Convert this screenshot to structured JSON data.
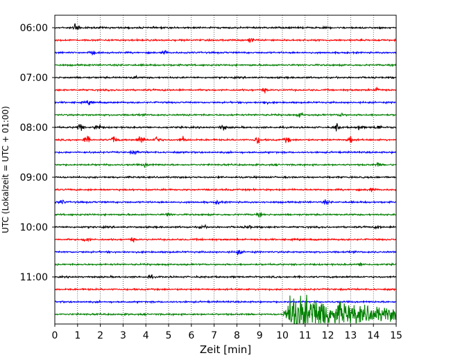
{
  "chart_data": {
    "type": "line",
    "xlabel": "Zeit  [min]",
    "ylabel": "UTC (Lokalzeit = UTC + 01:00)",
    "xlim": [
      0,
      15
    ],
    "x_ticks": [
      "0",
      "1",
      "2",
      "3",
      "4",
      "5",
      "6",
      "7",
      "8",
      "9",
      "10",
      "11",
      "12",
      "13",
      "14",
      "15"
    ],
    "y_ticks": [
      "06:00",
      "07:00",
      "08:00",
      "09:00",
      "10:00",
      "11:00"
    ],
    "grid": "vertical dotted",
    "trace_colors": [
      "#000000",
      "#ff0000",
      "#0000ff",
      "#008000"
    ],
    "traces": [
      {
        "start": "06:00",
        "color": "#000000",
        "events": [
          {
            "t": 0.95,
            "amp": 1.0
          }
        ]
      },
      {
        "start": "06:15",
        "color": "#ff0000",
        "events": [
          {
            "t": 8.6,
            "amp": 0.3
          }
        ]
      },
      {
        "start": "06:30",
        "color": "#0000ff",
        "events": [
          {
            "t": 1.65,
            "amp": 0.3
          },
          {
            "t": 4.8,
            "amp": 0.25
          }
        ]
      },
      {
        "start": "06:45",
        "color": "#008000",
        "events": []
      },
      {
        "start": "07:00",
        "color": "#000000",
        "events": [
          {
            "t": 3.5,
            "amp": 0.2
          }
        ]
      },
      {
        "start": "07:15",
        "color": "#ff0000",
        "events": [
          {
            "t": 9.2,
            "amp": 0.3
          },
          {
            "t": 14.2,
            "amp": 0.35
          }
        ]
      },
      {
        "start": "07:30",
        "color": "#0000ff",
        "events": [
          {
            "t": 1.5,
            "amp": 0.3
          },
          {
            "t": 9.2,
            "amp": 0.3
          }
        ]
      },
      {
        "start": "07:45",
        "color": "#008000",
        "events": [
          {
            "t": 10.8,
            "amp": 0.3
          },
          {
            "t": 12.6,
            "amp": 0.3
          }
        ]
      },
      {
        "start": "08:00",
        "color": "#000000",
        "events": [
          {
            "t": 1.1,
            "amp": 0.6
          },
          {
            "t": 1.9,
            "amp": 0.6
          },
          {
            "t": 7.4,
            "amp": 0.5
          },
          {
            "t": 12.4,
            "amp": 0.6
          },
          {
            "t": 13.4,
            "amp": 0.4
          },
          {
            "t": 14.2,
            "amp": 0.4
          }
        ]
      },
      {
        "start": "08:15",
        "color": "#ff0000",
        "events": [
          {
            "t": 1.4,
            "amp": 0.6
          },
          {
            "t": 2.6,
            "amp": 0.6
          },
          {
            "t": 3.8,
            "amp": 0.7
          },
          {
            "t": 4.5,
            "amp": 0.6
          },
          {
            "t": 5.6,
            "amp": 0.5
          },
          {
            "t": 8.9,
            "amp": 0.6
          },
          {
            "t": 10.2,
            "amp": 0.5
          },
          {
            "t": 13.0,
            "amp": 0.6
          }
        ]
      },
      {
        "start": "08:30",
        "color": "#0000ff",
        "events": [
          {
            "t": 3.5,
            "amp": 0.3
          }
        ]
      },
      {
        "start": "08:45",
        "color": "#008000",
        "events": [
          {
            "t": 4.0,
            "amp": 0.35
          },
          {
            "t": 14.2,
            "amp": 0.3
          }
        ]
      },
      {
        "start": "09:00",
        "color": "#000000",
        "events": []
      },
      {
        "start": "09:15",
        "color": "#ff0000",
        "events": [
          {
            "t": 13.9,
            "amp": 0.25
          }
        ]
      },
      {
        "start": "09:30",
        "color": "#0000ff",
        "events": [
          {
            "t": 0.3,
            "amp": 0.35
          },
          {
            "t": 7.2,
            "amp": 0.3
          },
          {
            "t": 11.9,
            "amp": 0.3
          }
        ]
      },
      {
        "start": "09:45",
        "color": "#008000",
        "events": [
          {
            "t": 5.0,
            "amp": 0.25
          },
          {
            "t": 9.0,
            "amp": 0.25
          }
        ]
      },
      {
        "start": "10:00",
        "color": "#000000",
        "events": [
          {
            "t": 6.5,
            "amp": 0.3
          },
          {
            "t": 8.5,
            "amp": 0.3
          },
          {
            "t": 14.2,
            "amp": 0.25
          }
        ]
      },
      {
        "start": "10:15",
        "color": "#ff0000",
        "events": [
          {
            "t": 1.4,
            "amp": 0.5
          },
          {
            "t": 3.4,
            "amp": 0.3
          }
        ]
      },
      {
        "start": "10:30",
        "color": "#0000ff",
        "events": [
          {
            "t": 8.1,
            "amp": 0.35
          }
        ]
      },
      {
        "start": "10:45",
        "color": "#008000",
        "events": [
          {
            "t": 13.5,
            "amp": 0.25
          }
        ]
      },
      {
        "start": "11:00",
        "color": "#000000",
        "events": [
          {
            "t": 4.2,
            "amp": 0.25
          }
        ]
      },
      {
        "start": "11:15",
        "color": "#ff0000",
        "events": []
      },
      {
        "start": "11:30",
        "color": "#0000ff",
        "events": []
      },
      {
        "start": "11:45",
        "color": "#008000",
        "events": [
          {
            "t": 10.5,
            "amp": 6.0,
            "decay": 1.8
          }
        ]
      }
    ]
  }
}
